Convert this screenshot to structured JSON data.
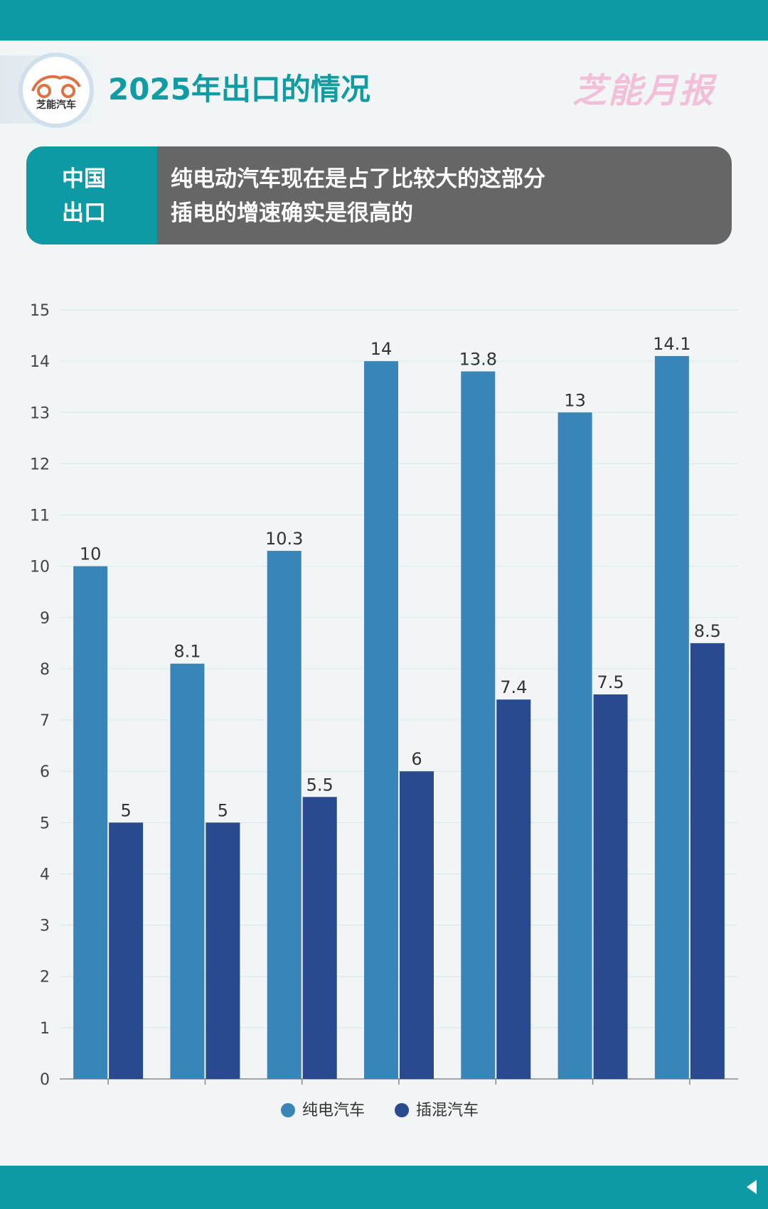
{
  "header": {
    "title": "2025年出口的情况",
    "brand": "芝能月报",
    "logo_text": "芝能汽车"
  },
  "banner": {
    "left_line1": "中国",
    "left_line2": "出口",
    "line1": "纯电动汽车现在是占了比较大的这部分",
    "line2": "插电的增速确实是很高的"
  },
  "colors": {
    "accent": "#0e9aa5",
    "bev": "#3a85b8",
    "phev": "#2a4a8f",
    "brand": "#f2bfd9"
  },
  "chart_data": {
    "type": "bar",
    "categories": [
      "",
      "",
      "",
      "",
      "",
      "",
      ""
    ],
    "series": [
      {
        "name": "纯电汽车",
        "values": [
          10,
          8.1,
          10.3,
          14,
          13.8,
          13,
          14.1
        ]
      },
      {
        "name": "插混汽车",
        "values": [
          5,
          5,
          5.5,
          6,
          7.4,
          7.5,
          8.5
        ]
      }
    ],
    "ylim": [
      0,
      15
    ],
    "yticks": [
      0,
      1,
      2,
      3,
      4,
      5,
      6,
      7,
      8,
      9,
      10,
      11,
      12,
      13,
      14,
      15
    ],
    "grid": true,
    "legend_position": "bottom-center",
    "data_labels": true
  }
}
